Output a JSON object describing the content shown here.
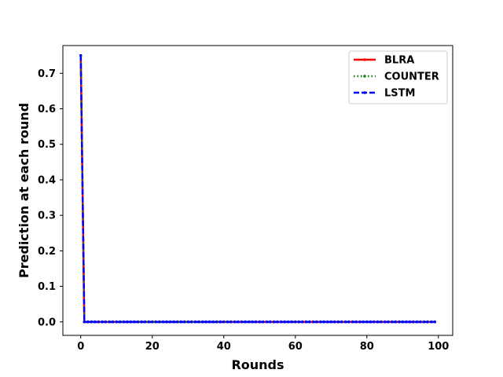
{
  "chart_data": {
    "type": "line",
    "title": "",
    "xlabel": "Rounds",
    "ylabel": "Prediction at each round",
    "xlim": [
      -5,
      104
    ],
    "ylim": [
      -0.038,
      0.778
    ],
    "xticks": [
      0,
      20,
      40,
      60,
      80,
      100
    ],
    "xtick_labels": [
      "0",
      "20",
      "40",
      "60",
      "80",
      "100"
    ],
    "yticks": [
      0.0,
      0.1,
      0.2,
      0.3,
      0.4,
      0.5,
      0.6,
      0.7
    ],
    "ytick_labels": [
      "0.0",
      "0.1",
      "0.2",
      "0.3",
      "0.4",
      "0.5",
      "0.6",
      "0.7"
    ],
    "grid": false,
    "legend_position": "top-right",
    "x_rounds": {
      "start": 0,
      "end": 99,
      "step": 1
    },
    "series": [
      {
        "name": "BLRA",
        "color": "#ff0000",
        "linestyle": "solid",
        "marker": "point",
        "first_value": 0.75,
        "other_values": 0.0
      },
      {
        "name": "COUNTER",
        "color": "#008000",
        "linestyle": "dotted",
        "marker": "point",
        "first_value": 0.75,
        "other_values": 0.0
      },
      {
        "name": "LSTM",
        "color": "#0000ff",
        "linestyle": "dashed",
        "marker": "point",
        "first_value": 0.75,
        "other_values": 0.0
      }
    ]
  }
}
